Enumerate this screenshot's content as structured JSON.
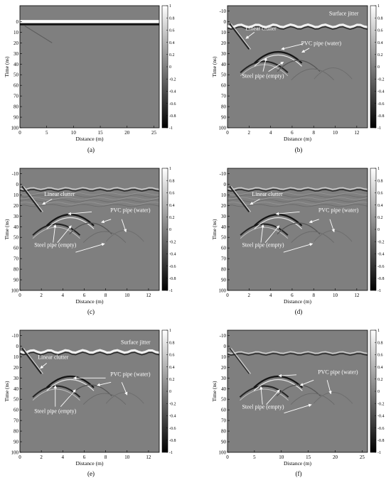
{
  "colors": {
    "axis": "#000000",
    "annotation": "#ffffff",
    "background": "#7f7f7f"
  },
  "chart_data": [
    {
      "id": "a",
      "type": "heatmap",
      "caption": "(a)",
      "xlabel": "Distance (m)",
      "ylabel": "Time (ns)",
      "xlim": [
        0,
        26
      ],
      "ylim": [
        -15,
        100
      ],
      "xticks": [
        0,
        5,
        10,
        15,
        20,
        25
      ],
      "yticks": [
        0,
        10,
        20,
        30,
        40,
        50,
        60,
        70,
        80,
        90,
        100
      ],
      "colorbar": {
        "min": -1,
        "max": 1,
        "ticks": [
          1,
          0.8,
          0.6,
          0.4,
          0.2,
          0,
          -0.2,
          -0.4,
          -0.6,
          -0.8,
          -1
        ]
      },
      "annotations": []
    },
    {
      "id": "b",
      "type": "heatmap",
      "caption": "(b)",
      "xlabel": "Distance (m)",
      "ylabel": "Time (ns)",
      "xlim": [
        0,
        13
      ],
      "ylim": [
        -15,
        100
      ],
      "xticks": [
        0,
        2,
        4,
        6,
        8,
        10,
        12
      ],
      "yticks": [
        -10,
        0,
        10,
        20,
        30,
        40,
        50,
        60,
        70,
        80,
        90,
        100
      ],
      "colorbar": {
        "min": -1,
        "max": 1,
        "ticks": [
          1,
          0.8,
          0.6,
          0.4,
          0.2,
          0,
          -0.2,
          -0.4,
          -0.6,
          -0.8,
          -1
        ]
      },
      "annotations": [
        {
          "text": "Surface jitter",
          "x": 10.8,
          "y": -6
        },
        {
          "text": "Linear clutter",
          "x": 3.1,
          "y": 8
        },
        {
          "text": "PVC pipe (water)",
          "x": 8.7,
          "y": 22
        },
        {
          "text": "Steel pipe (empty)",
          "x": 3.3,
          "y": 53
        }
      ]
    },
    {
      "id": "c",
      "type": "heatmap",
      "caption": "(c)",
      "xlabel": "Distance (m)",
      "ylabel": "Time (ns)",
      "xlim": [
        0,
        13
      ],
      "ylim": [
        -15,
        100
      ],
      "xticks": [
        0,
        2,
        4,
        6,
        8,
        10,
        12
      ],
      "yticks": [
        -10,
        0,
        10,
        20,
        30,
        40,
        50,
        60,
        70,
        80,
        90,
        100
      ],
      "colorbar": {
        "min": -1,
        "max": 1,
        "ticks": [
          1,
          0.8,
          0.6,
          0.4,
          0.2,
          0,
          -0.2,
          -0.4,
          -0.6,
          -0.8,
          -1
        ]
      },
      "annotations": [
        {
          "text": "Linear clutter",
          "x": 3.7,
          "y": 11
        },
        {
          "text": "PVC pipe (water)",
          "x": 10.3,
          "y": 26
        },
        {
          "text": "Steel pipe (empty)",
          "x": 3.3,
          "y": 59
        }
      ]
    },
    {
      "id": "d",
      "type": "heatmap",
      "caption": "(d)",
      "xlabel": "Distance (m)",
      "ylabel": "Time (ns)",
      "xlim": [
        0,
        13
      ],
      "ylim": [
        -15,
        100
      ],
      "xticks": [
        0,
        2,
        4,
        6,
        8,
        10,
        12
      ],
      "yticks": [
        -10,
        0,
        10,
        20,
        30,
        40,
        50,
        60,
        70,
        80,
        90,
        100
      ],
      "colorbar": {
        "min": -1,
        "max": 1,
        "ticks": [
          1,
          0.8,
          0.6,
          0.4,
          0.2,
          0,
          -0.2,
          -0.4,
          -0.6,
          -0.8,
          -1
        ]
      },
      "annotations": [
        {
          "text": "Linear clutter",
          "x": 3.7,
          "y": 11
        },
        {
          "text": "PVC pipe (water)",
          "x": 10.3,
          "y": 26
        },
        {
          "text": "Steel pipe (empty)",
          "x": 3.3,
          "y": 59
        }
      ]
    },
    {
      "id": "e",
      "type": "heatmap",
      "caption": "(e)",
      "xlabel": "Distance (m)",
      "ylabel": "Time (ns)",
      "xlim": [
        0,
        13
      ],
      "ylim": [
        -15,
        100
      ],
      "xticks": [
        0,
        2,
        4,
        6,
        8,
        10,
        12
      ],
      "yticks": [
        -10,
        0,
        10,
        20,
        30,
        40,
        50,
        60,
        70,
        80,
        90,
        100
      ],
      "colorbar": {
        "min": -1,
        "max": 1,
        "ticks": [
          1,
          0.8,
          0.6,
          0.4,
          0.2,
          0,
          -0.2,
          -0.4,
          -0.6,
          -0.8,
          -1
        ]
      },
      "annotations": [
        {
          "text": "Surface jitter",
          "x": 10.8,
          "y": -2
        },
        {
          "text": "Linear clutter",
          "x": 3.1,
          "y": 12
        },
        {
          "text": "PVC pipe (water)",
          "x": 10.3,
          "y": 28
        },
        {
          "text": "Steel pipe (empty)",
          "x": 3.3,
          "y": 63
        }
      ]
    },
    {
      "id": "f",
      "type": "heatmap",
      "caption": "(f)",
      "xlabel": "Distance (m)",
      "ylabel": "Time (ns)",
      "xlim": [
        0,
        26
      ],
      "ylim": [
        -15,
        100
      ],
      "xticks": [
        0,
        5,
        10,
        15,
        20,
        25
      ],
      "yticks": [
        -10,
        0,
        10,
        20,
        30,
        40,
        50,
        60,
        70,
        80,
        90,
        100
      ],
      "colorbar": {
        "min": -1,
        "max": 1,
        "ticks": [
          1,
          0.8,
          0.6,
          0.4,
          0.2,
          0,
          -0.2,
          -0.4,
          -0.6,
          -0.8,
          -1
        ]
      },
      "annotations": [
        {
          "text": "PVC pipe (water)",
          "x": 20.5,
          "y": 26
        },
        {
          "text": "Steel pipe (empty)",
          "x": 6.6,
          "y": 59
        }
      ]
    }
  ]
}
